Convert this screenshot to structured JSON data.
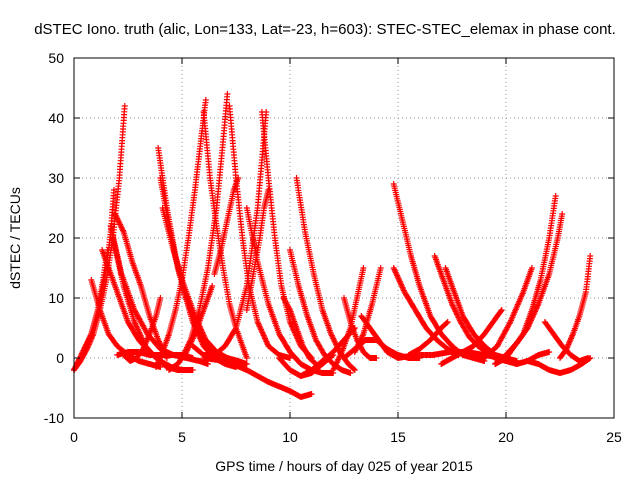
{
  "chart_data": {
    "type": "scatter",
    "title": "dSTEC Iono. truth (alic, Lon=133, Lat=-23, h=603): STEC-STEC_elemax in phase cont.",
    "xlabel": "GPS time / hours of day 025 of year 2015",
    "ylabel": "dSTEC  / TECUs",
    "xlim": [
      0,
      25
    ],
    "ylim": [
      -10,
      50
    ],
    "xticks": [
      0,
      5,
      10,
      15,
      20,
      25
    ],
    "yticks": [
      -10,
      0,
      10,
      20,
      30,
      40,
      50
    ],
    "grid": true,
    "marker": "plus",
    "color": "#ff0000",
    "series": [
      {
        "x": [
          0.0,
          0.3,
          0.6,
          0.9,
          1.2,
          1.5,
          1.8,
          2.1,
          2.35
        ],
        "y": [
          -2.0,
          -0.5,
          1.5,
          4.0,
          8.0,
          13.0,
          20.0,
          30.0,
          42.0
        ]
      },
      {
        "x": [
          0.0,
          0.4,
          0.8,
          1.2,
          1.5,
          1.7,
          1.85
        ],
        "y": [
          -2.0,
          0.5,
          4.0,
          9.0,
          15.0,
          21.0,
          28.0
        ]
      },
      {
        "x": [
          0.0,
          0.4,
          0.8,
          1.1,
          1.35,
          1.55
        ],
        "y": [
          -2.0,
          1.0,
          4.0,
          8.0,
          13.0,
          18.0
        ]
      },
      {
        "x": [
          0.8,
          1.2,
          1.6,
          2.0,
          2.5,
          3.0,
          3.5,
          4.0
        ],
        "y": [
          13.0,
          8.0,
          4.0,
          2.0,
          0.5,
          -0.5,
          -1.0,
          -1.5
        ]
      },
      {
        "x": [
          1.9,
          2.3,
          2.7,
          3.1,
          3.5,
          3.9,
          4.3
        ],
        "y": [
          24.0,
          21.0,
          16.0,
          12.0,
          7.0,
          3.0,
          0.0
        ]
      },
      {
        "x": [
          1.3,
          1.7,
          2.1,
          2.5,
          3.0,
          3.5,
          4.0,
          4.5,
          5.0,
          5.5
        ],
        "y": [
          18.0,
          14.0,
          10.0,
          6.0,
          3.0,
          1.0,
          -0.5,
          -1.5,
          -2.0,
          -2.0
        ]
      },
      {
        "x": [
          1.7,
          2.2,
          2.8,
          3.4,
          4.0,
          4.6,
          5.2,
          5.8,
          6.2
        ],
        "y": [
          22.0,
          14.0,
          8.0,
          4.0,
          1.5,
          0.5,
          0.0,
          -0.5,
          -1.0
        ]
      },
      {
        "x": [
          1.8,
          2.3,
          2.8,
          3.3,
          3.8,
          4.3,
          4.8,
          5.2
        ],
        "y": [
          20.0,
          12.0,
          6.0,
          2.0,
          0.0,
          -1.5,
          -2.0,
          -2.0
        ]
      },
      {
        "x": [
          2.0,
          2.5,
          3.0,
          3.5,
          4.0,
          4.5,
          5.0,
          5.5
        ],
        "y": [
          0.5,
          1.0,
          1.0,
          0.5,
          0.5,
          0.5,
          0.5,
          0.0
        ]
      },
      {
        "x": [
          2.3,
          2.6,
          2.9,
          3.2,
          3.5,
          3.8,
          4.0
        ],
        "y": [
          0.5,
          -0.5,
          0.0,
          1.5,
          4.0,
          7.0,
          10.0
        ]
      },
      {
        "x": [
          3.9,
          4.3,
          4.7,
          5.1,
          5.5,
          6.0,
          6.5,
          7.0,
          7.5
        ],
        "y": [
          35.0,
          25.0,
          17.0,
          11.0,
          6.0,
          2.0,
          0.0,
          -1.0,
          -1.5
        ]
      },
      {
        "x": [
          4.0,
          4.4,
          4.8,
          5.2,
          5.6,
          6.0,
          6.4,
          6.8
        ],
        "y": [
          30.0,
          22.0,
          15.0,
          10.0,
          6.0,
          3.0,
          1.0,
          -0.5
        ]
      },
      {
        "x": [
          4.1,
          4.6,
          5.1,
          5.6,
          6.1,
          6.6,
          7.1,
          7.6,
          8.0
        ],
        "y": [
          25.0,
          18.0,
          12.0,
          7.0,
          3.0,
          1.0,
          0.0,
          -0.5,
          -1.0
        ]
      },
      {
        "x": [
          4.4,
          4.8,
          5.2,
          5.6,
          6.0,
          6.4
        ],
        "y": [
          -2.0,
          -1.0,
          1.0,
          4.0,
          8.0,
          12.0
        ]
      },
      {
        "x": [
          3.8,
          4.1,
          4.4,
          4.7,
          5.0,
          5.3,
          5.6,
          5.9,
          6.1
        ],
        "y": [
          -1.5,
          1.0,
          4.0,
          8.0,
          13.0,
          20.0,
          28.0,
          37.0,
          43.0
        ]
      },
      {
        "x": [
          6.0,
          6.3,
          6.6,
          6.9,
          7.2,
          7.5,
          7.8,
          8.0
        ],
        "y": [
          41.0,
          30.0,
          22.0,
          15.0,
          9.0,
          5.0,
          2.0,
          0.0
        ]
      },
      {
        "x": [
          5.0,
          5.4,
          5.8,
          6.2,
          6.6,
          6.9,
          7.1
        ],
        "y": [
          0.0,
          3.0,
          8.0,
          15.0,
          25.0,
          36.0,
          44.0
        ]
      },
      {
        "x": [
          6.5,
          6.8,
          7.1,
          7.4,
          7.6
        ],
        "y": [
          14.0,
          18.0,
          23.0,
          28.0,
          30.0
        ]
      },
      {
        "x": [
          7.2,
          7.5,
          7.8,
          8.1,
          8.5,
          9.0,
          9.5,
          10.0
        ],
        "y": [
          42.0,
          30.0,
          20.0,
          12.0,
          6.0,
          2.0,
          0.5,
          0.0
        ]
      },
      {
        "x": [
          5.5,
          6.0,
          6.5,
          7.0,
          7.5,
          8.0,
          8.5,
          8.9
        ],
        "y": [
          2.0,
          0.5,
          0.5,
          2.0,
          5.0,
          12.0,
          25.0,
          41.0
        ]
      },
      {
        "x": [
          8.0,
          8.3,
          8.6,
          8.8,
          9.0
        ],
        "y": [
          8.0,
          14.0,
          20.0,
          25.0,
          28.0
        ]
      },
      {
        "x": [
          8.7,
          9.0,
          9.3,
          9.6,
          10.0,
          10.5,
          11.0
        ],
        "y": [
          41.0,
          30.0,
          20.0,
          12.0,
          6.0,
          2.0,
          0.0
        ]
      },
      {
        "x": [
          8.0,
          8.5,
          9.0,
          9.5,
          10.0,
          10.5,
          11.0,
          11.5,
          12.0
        ],
        "y": [
          25.0,
          16.0,
          9.0,
          4.0,
          1.0,
          -1.0,
          -2.0,
          -2.5,
          -2.5
        ]
      },
      {
        "x": [
          6.0,
          7.0,
          8.0,
          9.0,
          10.0,
          10.5,
          11.0
        ],
        "y": [
          0.0,
          -0.5,
          -2.0,
          -4.0,
          -5.5,
          -6.5,
          -6.0
        ]
      },
      {
        "x": [
          10.0,
          10.4,
          10.8,
          11.2,
          11.6,
          12.0,
          12.4,
          12.8
        ],
        "y": [
          18.0,
          12.0,
          7.0,
          3.0,
          0.5,
          -1.0,
          -2.0,
          -2.5
        ]
      },
      {
        "x": [
          10.3,
          10.7,
          11.1,
          11.5,
          11.9,
          12.3,
          12.7,
          13.0
        ],
        "y": [
          30.0,
          21.0,
          14.0,
          8.0,
          4.0,
          1.0,
          -1.0,
          -2.0
        ]
      },
      {
        "x": [
          9.5,
          10.0,
          10.5,
          11.0,
          11.5,
          12.0
        ],
        "y": [
          0.0,
          -2.0,
          -3.0,
          -2.5,
          -1.0,
          0.5
        ]
      },
      {
        "x": [
          10.5,
          11.0,
          11.5,
          12.0,
          12.5,
          13.0
        ],
        "y": [
          -3.0,
          -2.0,
          -0.5,
          1.0,
          3.0,
          5.0
        ]
      },
      {
        "x": [
          9.7,
          10.0,
          10.3,
          10.6,
          10.9,
          11.2
        ],
        "y": [
          10.0,
          8.0,
          5.0,
          2.0,
          0.0,
          -1.0
        ]
      },
      {
        "x": [
          12.5,
          12.8,
          13.1,
          13.4,
          13.7,
          14.0
        ],
        "y": [
          10.0,
          6.0,
          3.0,
          1.0,
          0.0,
          0.0
        ]
      },
      {
        "x": [
          12.0,
          12.4,
          12.8,
          13.1,
          13.4
        ],
        "y": [
          -2.0,
          1.0,
          5.0,
          10.0,
          15.0
        ]
      },
      {
        "x": [
          13.0,
          13.4,
          13.8,
          14.2
        ],
        "y": [
          1.0,
          4.0,
          9.0,
          15.0
        ]
      },
      {
        "x": [
          12.5,
          13.0,
          13.5,
          14.0,
          14.5,
          15.0,
          15.5,
          16.0
        ],
        "y": [
          0.0,
          1.5,
          3.0,
          3.0,
          1.5,
          0.5,
          0.0,
          0.0
        ]
      },
      {
        "x": [
          13.3,
          13.7,
          14.1,
          14.5,
          15.0
        ],
        "y": [
          7.0,
          5.0,
          3.0,
          1.0,
          0.0
        ]
      },
      {
        "x": [
          14.8,
          15.2,
          15.6,
          16.0,
          16.5,
          17.0,
          17.5,
          18.0,
          18.5,
          19.0
        ],
        "y": [
          29.0,
          23.0,
          17.0,
          12.0,
          7.0,
          4.0,
          2.0,
          0.5,
          0.0,
          -0.5
        ]
      },
      {
        "x": [
          14.8,
          15.3,
          15.8,
          16.3,
          16.8,
          17.3,
          17.8
        ],
        "y": [
          15.0,
          11.0,
          8.0,
          5.0,
          3.0,
          1.5,
          0.5
        ]
      },
      {
        "x": [
          15.0,
          15.8,
          16.6,
          17.4,
          18.2,
          19.0,
          19.8,
          20.5
        ],
        "y": [
          0.0,
          0.5,
          0.5,
          1.0,
          1.0,
          0.5,
          0.0,
          -0.5
        ]
      },
      {
        "x": [
          15.5,
          16.0,
          16.5,
          17.0,
          17.3
        ],
        "y": [
          0.5,
          1.5,
          3.0,
          5.0,
          6.0
        ]
      },
      {
        "x": [
          16.7,
          17.1,
          17.5,
          17.9,
          18.3,
          18.7,
          19.1,
          19.5,
          20.0,
          20.5
        ],
        "y": [
          17.0,
          13.0,
          9.0,
          6.0,
          3.5,
          2.0,
          1.0,
          0.0,
          -0.5,
          -1.0
        ]
      },
      {
        "x": [
          17.2,
          17.6,
          18.0,
          18.5,
          19.0,
          19.5,
          20.0,
          20.5
        ],
        "y": [
          15.0,
          11.0,
          7.0,
          4.0,
          2.0,
          0.5,
          0.0,
          -0.5
        ]
      },
      {
        "x": [
          17.0,
          17.5,
          18.0,
          18.5,
          19.0,
          19.5,
          19.8
        ],
        "y": [
          -1.0,
          0.0,
          1.0,
          2.0,
          4.0,
          6.5,
          8.0
        ]
      },
      {
        "x": [
          19.5,
          20.0,
          20.4,
          20.8,
          21.2,
          21.6,
          22.0,
          22.3
        ],
        "y": [
          -1.0,
          0.0,
          2.0,
          4.0,
          8.0,
          13.0,
          20.0,
          27.0
        ]
      },
      {
        "x": [
          19.5,
          20.0,
          20.5,
          21.0,
          21.5,
          22.0,
          22.4,
          22.6
        ],
        "y": [
          -1.0,
          0.5,
          2.5,
          5.0,
          9.0,
          14.0,
          20.0,
          24.0
        ]
      },
      {
        "x": [
          19.0,
          19.6,
          20.2,
          20.8,
          21.2
        ],
        "y": [
          0.0,
          2.0,
          6.0,
          11.0,
          15.0
        ]
      },
      {
        "x": [
          20.5,
          21.0,
          21.5,
          22.0
        ],
        "y": [
          -1.0,
          -0.5,
          0.5,
          1.0
        ]
      },
      {
        "x": [
          21.8,
          22.2,
          22.6,
          23.0,
          23.4,
          23.8
        ],
        "y": [
          6.0,
          4.0,
          2.0,
          0.5,
          -0.5,
          0.0
        ]
      },
      {
        "x": [
          21.0,
          21.5,
          22.0,
          22.5,
          23.0,
          23.5,
          23.9
        ],
        "y": [
          -0.5,
          -1.0,
          -2.0,
          -2.5,
          -2.0,
          -1.0,
          0.0
        ]
      },
      {
        "x": [
          22.5,
          22.8,
          23.1,
          23.4,
          23.7,
          23.9
        ],
        "y": [
          0.0,
          1.5,
          4.0,
          7.0,
          11.0,
          17.0
        ]
      }
    ]
  }
}
